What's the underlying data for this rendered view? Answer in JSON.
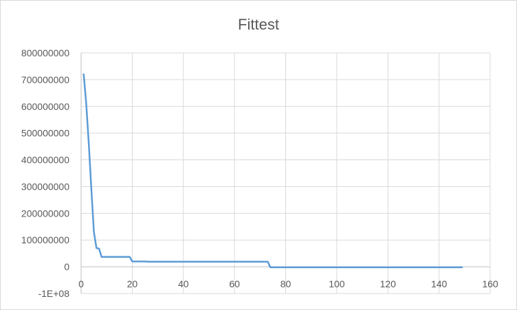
{
  "chart_data": {
    "type": "line",
    "title": "Fittest",
    "xlabel": "",
    "ylabel": "",
    "xlim": [
      0,
      160
    ],
    "ylim": [
      -100000000,
      800000000
    ],
    "grid": true,
    "legend": "none",
    "x_ticks": [
      "0",
      "20",
      "40",
      "60",
      "80",
      "100",
      "120",
      "140",
      "160"
    ],
    "y_ticks": [
      "800000000",
      "700000000",
      "600000000",
      "500000000",
      "400000000",
      "300000000",
      "200000000",
      "100000000",
      "0",
      "-1E+08"
    ],
    "series": [
      {
        "color": "#5b9bd5",
        "points": [
          [
            1,
            720000000
          ],
          [
            2,
            610000000
          ],
          [
            3,
            460000000
          ],
          [
            4,
            290000000
          ],
          [
            5,
            130000000
          ],
          [
            6,
            70000000
          ],
          [
            7,
            68000000
          ],
          [
            8,
            37000000
          ],
          [
            19,
            37000000
          ],
          [
            20,
            20000000
          ],
          [
            25,
            20000000
          ],
          [
            26,
            19000000
          ],
          [
            73,
            19000000
          ],
          [
            74,
            -2000000
          ],
          [
            149,
            -2000000
          ]
        ]
      }
    ]
  }
}
